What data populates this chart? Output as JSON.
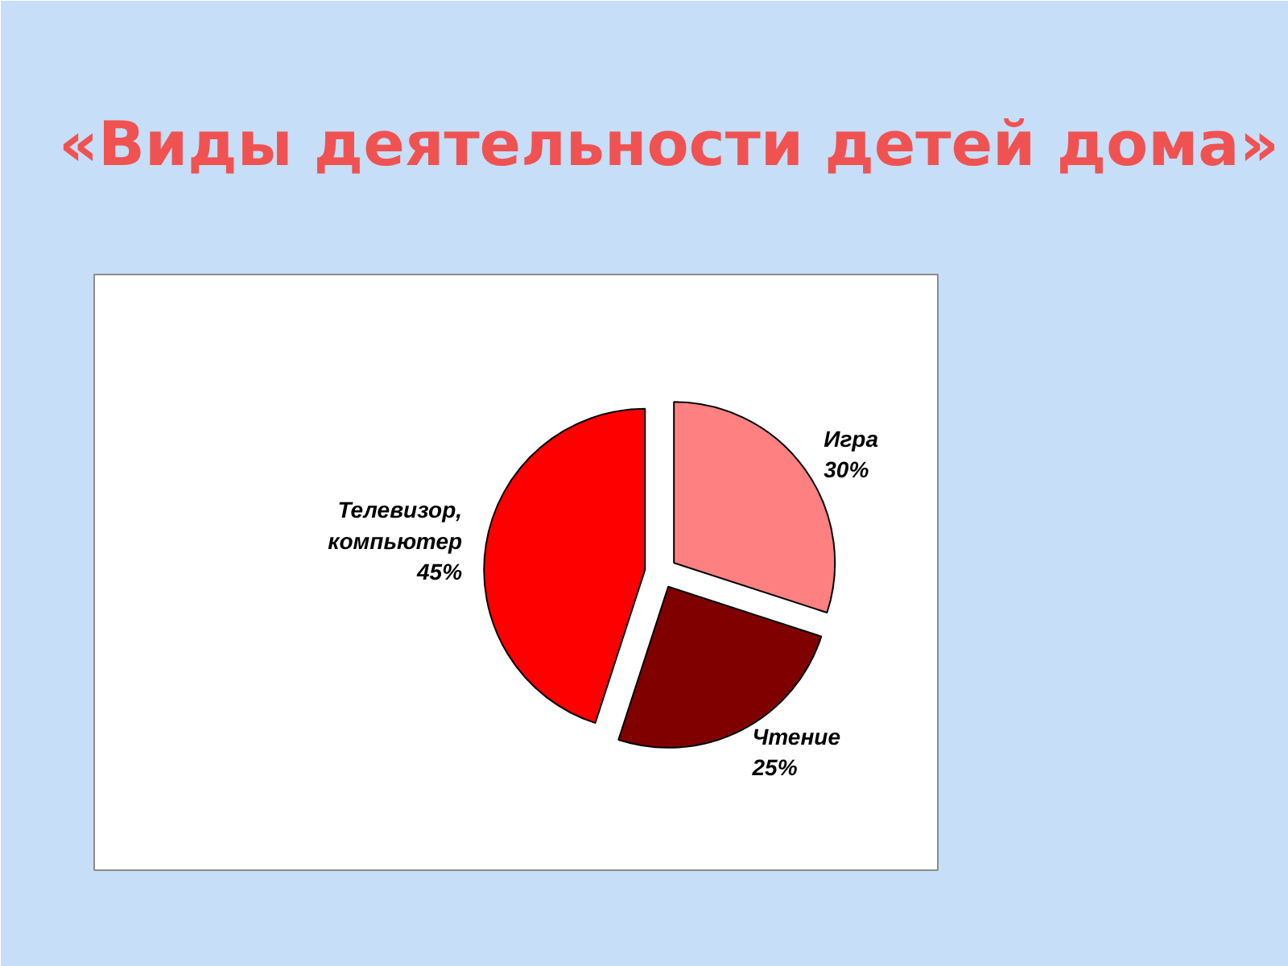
{
  "chart_data": {
    "type": "pie",
    "title": "«Виды деятельности детей дома»",
    "categories": [
      "Игра",
      "Чтение",
      "Телевизор, компьютер"
    ],
    "values": [
      30,
      25,
      45
    ],
    "colors": [
      "#ff8080",
      "#800000",
      "#ff0000"
    ],
    "value_labels": [
      "30%",
      "25%",
      "45%"
    ]
  }
}
